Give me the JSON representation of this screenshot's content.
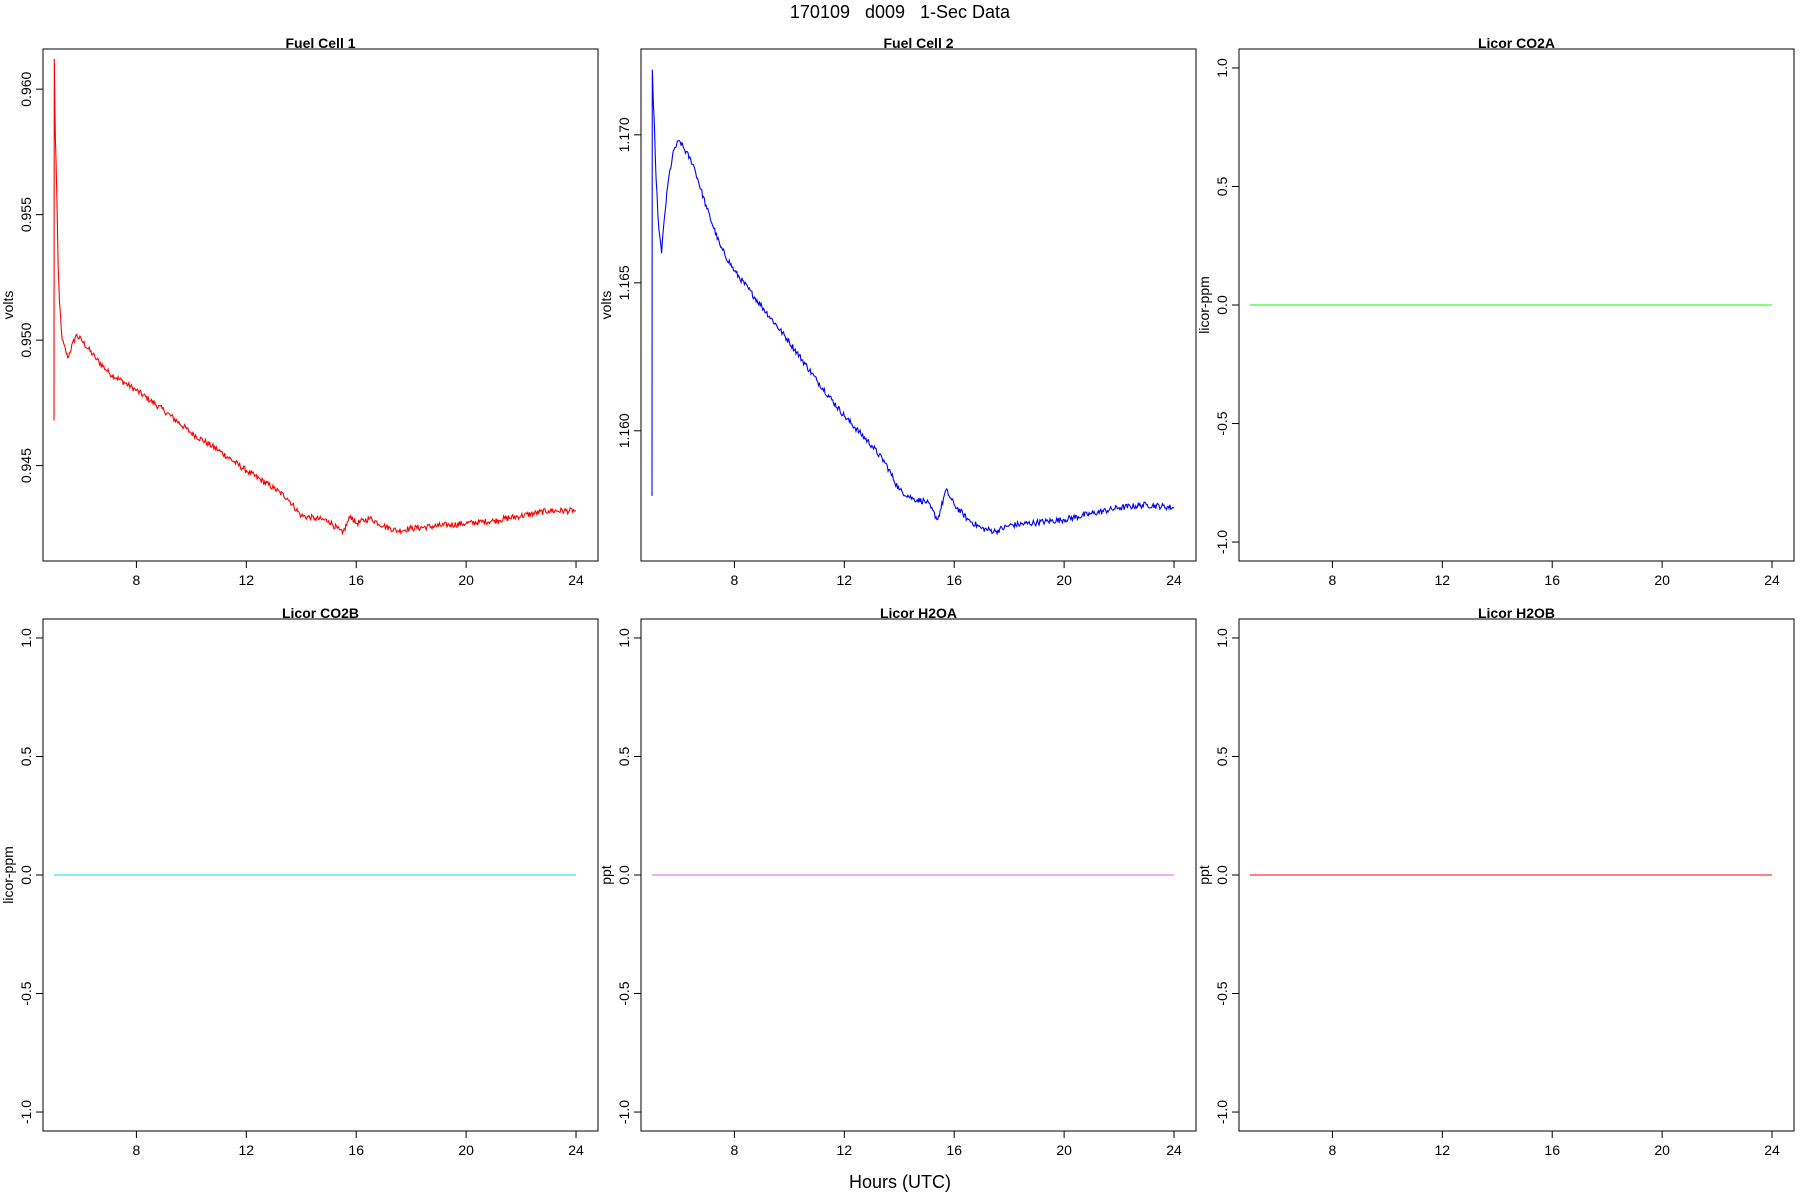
{
  "figure": {
    "title": "170109   d009   1-Sec Data",
    "xlabel": "Hours (UTC)"
  },
  "chart_data": [
    {
      "type": "line",
      "title": "Fuel Cell 1",
      "xlabel": "",
      "ylabel": "volts",
      "xlim": [
        4.6,
        24.8
      ],
      "ylim": [
        0.9412,
        0.9616
      ],
      "xticks": [
        8,
        12,
        16,
        20,
        24
      ],
      "yticks": [
        0.945,
        0.95,
        0.955,
        0.96
      ],
      "ytick_labels": [
        "0.945",
        "0.950",
        "0.955",
        "0.960"
      ],
      "color": "#ff0000",
      "grid": false,
      "legend": "none",
      "x": [
        5.0,
        5.01,
        5.05,
        5.1,
        5.15,
        5.2,
        5.3,
        5.5,
        5.8,
        6.0,
        6.5,
        7,
        8,
        9,
        10,
        11,
        12,
        13,
        13.5,
        14,
        14.5,
        15,
        15.5,
        15.8,
        16,
        16.5,
        17,
        17.5,
        18,
        19,
        20,
        21,
        22,
        23,
        24
      ],
      "y": [
        0.9468,
        0.9612,
        0.958,
        0.956,
        0.953,
        0.9515,
        0.95,
        0.9493,
        0.9502,
        0.95,
        0.9493,
        0.9487,
        0.948,
        0.9472,
        0.9463,
        0.9456,
        0.9448,
        0.9441,
        0.9437,
        0.943,
        0.9429,
        0.9428,
        0.9423,
        0.943,
        0.9427,
        0.9429,
        0.9426,
        0.9424,
        0.9425,
        0.9426,
        0.9427,
        0.9428,
        0.943,
        0.9432,
        0.9432
      ]
    },
    {
      "type": "line",
      "title": "Fuel Cell 2",
      "xlabel": "",
      "ylabel": "volts",
      "xlim": [
        4.6,
        24.8
      ],
      "ylim": [
        1.1556,
        1.1729
      ],
      "xticks": [
        8,
        12,
        16,
        20,
        24
      ],
      "yticks": [
        1.16,
        1.165,
        1.17
      ],
      "ytick_labels": [
        "1.160",
        "1.165",
        "1.170"
      ],
      "color": "#0000ff",
      "grid": false,
      "legend": "none",
      "x": [
        5.0,
        5.01,
        5.05,
        5.1,
        5.15,
        5.25,
        5.35,
        5.45,
        5.6,
        5.8,
        6.0,
        6.5,
        7,
        7.5,
        8,
        9,
        10,
        11,
        12,
        13,
        13.5,
        14,
        14.5,
        15,
        15.4,
        15.7,
        16,
        16.5,
        17,
        17.5,
        18,
        19,
        20,
        21,
        22,
        23,
        24
      ],
      "y": [
        1.1578,
        1.1722,
        1.171,
        1.17,
        1.1685,
        1.1668,
        1.166,
        1.1672,
        1.1685,
        1.1695,
        1.1698,
        1.169,
        1.1675,
        1.1662,
        1.1654,
        1.1642,
        1.163,
        1.1617,
        1.1605,
        1.1595,
        1.1589,
        1.158,
        1.1577,
        1.1576,
        1.157,
        1.158,
        1.1575,
        1.157,
        1.1567,
        1.1566,
        1.1568,
        1.1569,
        1.157,
        1.1572,
        1.1574,
        1.1575,
        1.1574
      ]
    },
    {
      "type": "line",
      "title": "Licor CO2A",
      "xlabel": "",
      "ylabel": "licor-ppm",
      "xlim": [
        4.6,
        24.8
      ],
      "ylim": [
        -1.08,
        1.08
      ],
      "xticks": [
        8,
        12,
        16,
        20,
        24
      ],
      "yticks": [
        -1,
        -0.5,
        0,
        0.5,
        1
      ],
      "ytick_labels": [
        "-1.0",
        "-0.5",
        "0.0",
        "0.5",
        "1.0"
      ],
      "color": "#00ff00",
      "grid": false,
      "legend": "none",
      "x": [
        5.0,
        24.0
      ],
      "y": [
        0,
        0
      ]
    },
    {
      "type": "line",
      "title": "Licor CO2B",
      "xlabel": "",
      "ylabel": "licor-ppm",
      "xlim": [
        4.6,
        24.8
      ],
      "ylim": [
        -1.08,
        1.08
      ],
      "xticks": [
        8,
        12,
        16,
        20,
        24
      ],
      "yticks": [
        -1,
        -0.5,
        0,
        0.5,
        1
      ],
      "ytick_labels": [
        "-1.0",
        "-0.5",
        "0.0",
        "0.5",
        "1.0"
      ],
      "color": "#00e5e5",
      "grid": false,
      "legend": "none",
      "x": [
        5.0,
        24.0
      ],
      "y": [
        0,
        0
      ]
    },
    {
      "type": "line",
      "title": "Licor H2OA",
      "xlabel": "",
      "ylabel": "ppt",
      "xlim": [
        4.6,
        24.8
      ],
      "ylim": [
        -1.08,
        1.08
      ],
      "xticks": [
        8,
        12,
        16,
        20,
        24
      ],
      "yticks": [
        -1,
        -0.5,
        0,
        0.5,
        1
      ],
      "ytick_labels": [
        "-1.0",
        "-0.5",
        "0.0",
        "0.5",
        "1.0"
      ],
      "color": "#e05ce0",
      "grid": false,
      "legend": "none",
      "x": [
        5.0,
        24.0
      ],
      "y": [
        0,
        0
      ]
    },
    {
      "type": "line",
      "title": "Licor H2OB",
      "xlabel": "",
      "ylabel": "ppt",
      "xlim": [
        4.6,
        24.8
      ],
      "ylim": [
        -1.08,
        1.08
      ],
      "xticks": [
        8,
        12,
        16,
        20,
        24
      ],
      "yticks": [
        -1,
        -0.5,
        0,
        0.5,
        1
      ],
      "ytick_labels": [
        "-1.0",
        "-0.5",
        "0.0",
        "0.5",
        "1.0"
      ],
      "color": "#ff0000",
      "grid": false,
      "legend": "none",
      "x": [
        5.0,
        24.0
      ],
      "y": [
        0,
        0
      ]
    }
  ]
}
